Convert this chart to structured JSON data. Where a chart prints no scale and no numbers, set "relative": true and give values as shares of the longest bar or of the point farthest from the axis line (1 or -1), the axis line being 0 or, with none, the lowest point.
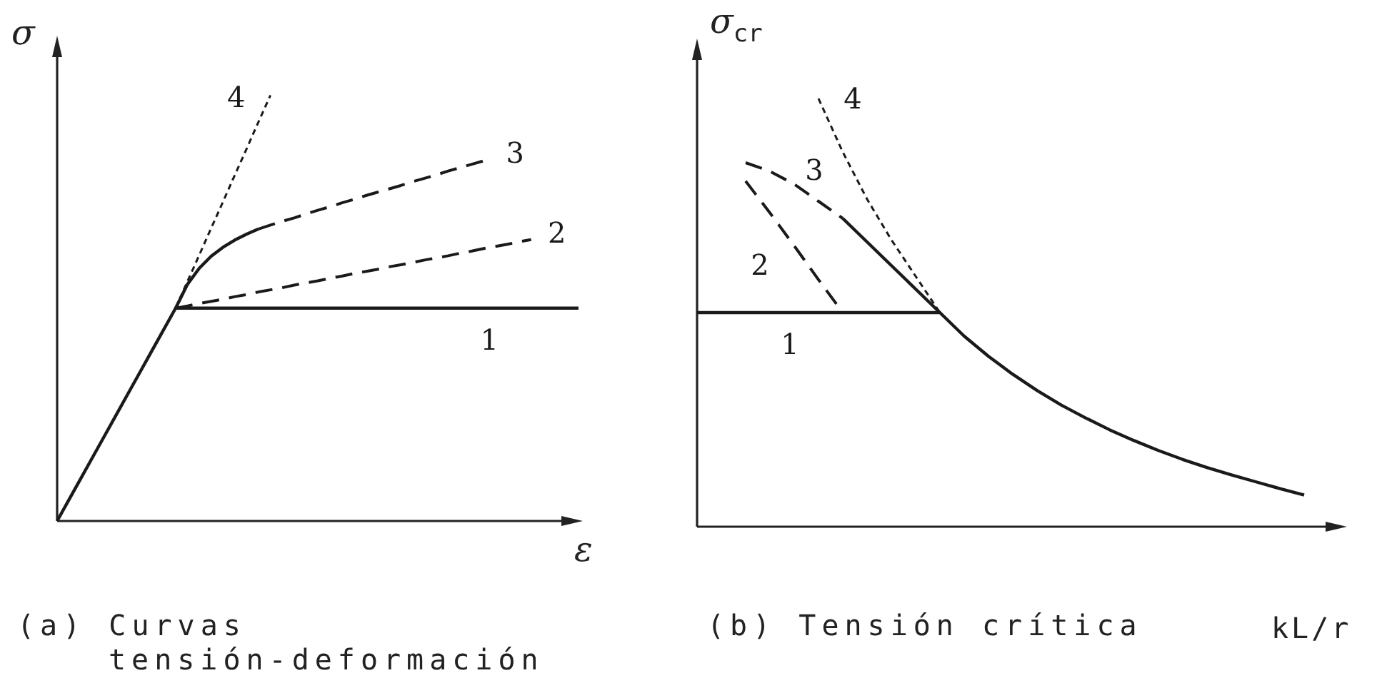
{
  "chart_data": [
    {
      "type": "line",
      "title": "(a) Curvas tensión-deformación",
      "xlabel": "ε",
      "ylabel": "σ",
      "relative": true,
      "categories": [
        null,
        null,
        null,
        null,
        null,
        null,
        null,
        null,
        null,
        null,
        null,
        null,
        null,
        null,
        null,
        null,
        null,
        null,
        null,
        null,
        null,
        null,
        null,
        null,
        null,
        null,
        null,
        null,
        null,
        null,
        null,
        null,
        null,
        null,
        null,
        null,
        null,
        null,
        null,
        null,
        null,
        null,
        null,
        null,
        null
      ],
      "series": [
        {
          "name": "1",
          "color": "#1a1a1a",
          "line_style": "solid",
          "values": [
            0,
            0.05,
            0.1,
            0.15,
            0.2,
            0.25,
            0.3,
            0.35,
            0.4,
            0.45,
            0.5,
            0.5,
            0.5,
            0.5,
            0.5,
            0.5,
            0.5,
            0.5,
            0.5,
            0.5,
            0.5,
            0.5,
            0.5,
            0.5,
            0.5,
            0.5,
            0.5,
            0.5,
            0.5,
            0.5,
            0.5,
            0.5,
            0.5,
            0.5,
            0.5,
            0.5,
            0.5,
            0.5,
            0.5,
            0.5,
            0.5,
            0.5,
            0.5,
            0.5,
            0.5
          ]
        },
        {
          "name": "2",
          "color": "#1a1a1a",
          "line_style": "dashed",
          "values": [
            null,
            null,
            null,
            null,
            null,
            null,
            null,
            null,
            null,
            null,
            0.5,
            0.505,
            0.511,
            0.516,
            0.521,
            0.527,
            0.532,
            0.538,
            0.543,
            0.548,
            0.554,
            0.559,
            0.564,
            0.57,
            0.575,
            0.581,
            0.586,
            0.591,
            0.597,
            0.602,
            0.607,
            0.613,
            0.618,
            0.623,
            0.629,
            0.634,
            0.64,
            0.645,
            0.65,
            0.656,
            0.661,
            null,
            null,
            null,
            null
          ]
        },
        {
          "color": "#1a1a1a",
          "line_style": "solid",
          "values": [
            null,
            null,
            null,
            null,
            null,
            null,
            null,
            null,
            null,
            null,
            0.5,
            0.556,
            0.594,
            0.622,
            0.643,
            0.66,
            0.674,
            0.686,
            null,
            null,
            null,
            null,
            null,
            null,
            null,
            null,
            null,
            null,
            null,
            null,
            null,
            null,
            null,
            null,
            null,
            null,
            null,
            null,
            null,
            null,
            null,
            null,
            null,
            null,
            null
          ]
        },
        {
          "name": "3",
          "color": "#1a1a1a",
          "line_style": "dashed",
          "values": [
            null,
            null,
            null,
            null,
            null,
            null,
            null,
            null,
            null,
            null,
            null,
            null,
            null,
            null,
            null,
            null,
            null,
            0.686,
            0.695,
            0.704,
            0.712,
            0.721,
            0.73,
            0.738,
            0.747,
            0.755,
            0.764,
            0.772,
            0.78,
            0.788,
            0.797,
            0.805,
            0.813,
            0.822,
            0.83,
            0.838,
            0.846,
            null,
            null,
            null,
            null,
            null,
            null,
            null,
            null
          ]
        },
        {
          "name": "4",
          "color": "#1a1a1a",
          "line_style": "dotted",
          "values": [
            null,
            null,
            null,
            null,
            null,
            null,
            null,
            null,
            null,
            null,
            0.5,
            0.563,
            0.625,
            0.688,
            0.75,
            0.813,
            0.875,
            0.938,
            1,
            null,
            null,
            null,
            null,
            null,
            null,
            null,
            null,
            null,
            null,
            null,
            null,
            null,
            null,
            null,
            null,
            null,
            null,
            null,
            null,
            null,
            null,
            null,
            null,
            null,
            null
          ]
        }
      ]
    },
    {
      "type": "line",
      "title": "(b) Tensión crítica",
      "xlabel": "kL/r",
      "ylabel": "σ$_{cr}$",
      "relative": true,
      "categories": [
        null,
        null,
        null,
        null,
        null,
        null,
        null,
        null,
        null,
        null,
        null,
        null,
        null,
        null,
        null,
        null,
        null,
        null,
        null,
        null,
        null,
        null,
        null,
        null,
        null,
        null
      ],
      "series": [
        {
          "name": "1",
          "color": "#1a1a1a",
          "line_style": "solid",
          "values": [
            0.5,
            0.5,
            0.5,
            0.5,
            0.5,
            0.5,
            0.5,
            0.5,
            0.5,
            0.5,
            0.5,
            0.445,
            0.398,
            0.356,
            0.318,
            0.284,
            0.254,
            0.226,
            0.201,
            0.178,
            0.157,
            0.138,
            0.121,
            0.105,
            0.089,
            0.074
          ]
        },
        {
          "name": "2",
          "color": "#1a1a1a",
          "line_style": "dashed",
          "values": [
            null,
            null,
            0.807,
            0.733,
            0.656,
            0.577,
            0.5,
            null,
            null,
            null,
            null,
            null,
            null,
            null,
            null,
            null,
            null,
            null,
            null,
            null,
            null,
            null,
            null,
            null,
            null,
            null
          ]
        },
        {
          "color": "#1a1a1a",
          "line_style": "solid",
          "values": [
            null,
            null,
            null,
            null,
            null,
            null,
            0.72,
            0.665,
            0.61,
            0.555,
            0.5,
            null,
            null,
            null,
            null,
            null,
            null,
            null,
            null,
            null,
            null,
            null,
            null,
            null,
            null,
            null
          ]
        },
        {
          "name": "3",
          "color": "#1a1a1a",
          "line_style": "dashed",
          "values": [
            null,
            null,
            0.85,
            0.83,
            0.8,
            0.76,
            0.72,
            null,
            null,
            null,
            null,
            null,
            null,
            null,
            null,
            null,
            null,
            null,
            null,
            null,
            null,
            null,
            null,
            null,
            null,
            null
          ]
        },
        {
          "name": "4",
          "color": "#1a1a1a",
          "line_style": "dotted",
          "values": [
            null,
            null,
            null,
            null,
            null,
            1,
            0.875,
            0.765,
            0.67,
            0.585,
            0.5,
            null,
            null,
            null,
            null,
            null,
            null,
            null,
            null,
            null,
            null,
            null,
            null,
            null,
            null,
            null
          ]
        }
      ]
    }
  ]
}
